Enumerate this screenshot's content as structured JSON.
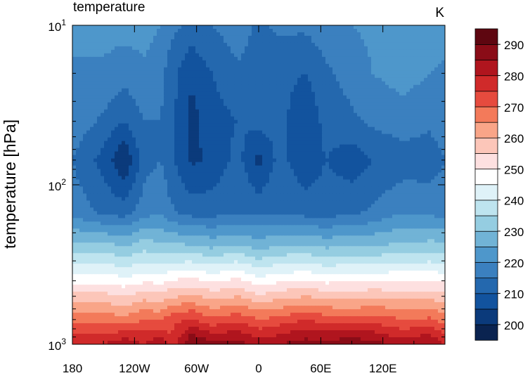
{
  "chart_data": {
    "type": "heatmap",
    "title": "temperature",
    "units": "K",
    "ylabel": "temperature  [hPa]",
    "x_ticks": [
      {
        "value": -180,
        "label": "180"
      },
      {
        "value": -120,
        "label": "120W"
      },
      {
        "value": -60,
        "label": "60W"
      },
      {
        "value": 0,
        "label": "0"
      },
      {
        "value": 60,
        "label": "60E"
      },
      {
        "value": 120,
        "label": "120E"
      }
    ],
    "xlim": [
      -180,
      180
    ],
    "y_scale": "log",
    "ylim": [
      1000,
      10
    ],
    "y_ticks": [
      {
        "value": 10,
        "base": "10",
        "exp": "1"
      },
      {
        "value": 100,
        "base": "10",
        "exp": "2"
      },
      {
        "value": 1000,
        "base": "10",
        "exp": "3"
      }
    ],
    "colorbar": {
      "levels": [
        195,
        200,
        205,
        210,
        215,
        220,
        225,
        230,
        235,
        240,
        245,
        250,
        255,
        260,
        265,
        270,
        275,
        280,
        285,
        290,
        295
      ],
      "labels": [
        "200",
        "210",
        "220",
        "230",
        "240",
        "250",
        "260",
        "270",
        "280",
        "290"
      ],
      "label_values": [
        200,
        210,
        220,
        230,
        240,
        250,
        260,
        270,
        280,
        290
      ],
      "colors": [
        "#0a2350",
        "#0b3a7b",
        "#12539e",
        "#2468ae",
        "#3b80bf",
        "#4e97cb",
        "#71b3d6",
        "#95cde1",
        "#bee4ef",
        "#dff2f8",
        "#ffffff",
        "#fde0e0",
        "#fcc6b9",
        "#f9a588",
        "#f37a5a",
        "#e64b3e",
        "#d02a2a",
        "#b0151e",
        "#8a0c17",
        "#5e0610"
      ]
    },
    "approx_grid": {
      "lon": [
        -180,
        -150,
        -130,
        -110,
        -95,
        -85,
        -65,
        -45,
        -20,
        0,
        20,
        45,
        65,
        90,
        110,
        140,
        165,
        180
      ],
      "lev": [
        10,
        20,
        40,
        70,
        150,
        250,
        350,
        500,
        700,
        1000
      ],
      "values": [
        [
          222,
          222,
          222,
          222,
          220,
          217,
          213,
          215,
          218,
          214,
          216,
          216,
          218,
          220,
          221,
          225,
          223,
          222
        ],
        [
          219,
          219,
          217,
          219,
          217,
          212,
          206,
          210,
          214,
          212,
          212,
          210,
          214,
          217,
          220,
          222,
          220,
          219
        ],
        [
          218,
          214,
          210,
          215,
          215,
          212,
          203,
          208,
          210,
          212,
          212,
          205,
          212,
          214,
          216,
          218,
          216,
          218
        ],
        [
          215,
          208,
          200,
          213,
          215,
          211,
          204,
          206,
          212,
          203,
          212,
          206,
          210,
          207,
          210,
          212,
          212,
          215
        ],
        [
          218,
          214,
          213,
          218,
          220,
          216,
          213,
          213,
          215,
          214,
          215,
          213,
          213,
          214,
          216,
          220,
          219,
          218
        ],
        [
          233,
          233,
          231,
          234,
          232,
          232,
          232,
          230,
          232,
          229,
          231,
          232,
          230,
          231,
          231,
          232,
          233,
          233
        ],
        [
          244,
          244,
          242,
          244,
          243,
          245,
          246,
          244,
          246,
          242,
          244,
          245,
          243,
          244,
          244,
          245,
          245,
          244
        ],
        [
          257,
          257,
          255,
          258,
          257,
          259,
          261,
          258,
          260,
          256,
          258,
          260,
          258,
          258,
          259,
          258,
          258,
          257
        ],
        [
          268,
          268,
          267,
          270,
          269,
          273,
          276,
          271,
          274,
          270,
          272,
          275,
          273,
          271,
          273,
          270,
          271,
          268
        ],
        [
          279,
          280,
          284,
          280,
          286,
          276,
          291,
          287,
          287,
          283,
          285,
          288,
          287,
          290,
          287,
          283,
          286,
          279
        ]
      ]
    }
  }
}
